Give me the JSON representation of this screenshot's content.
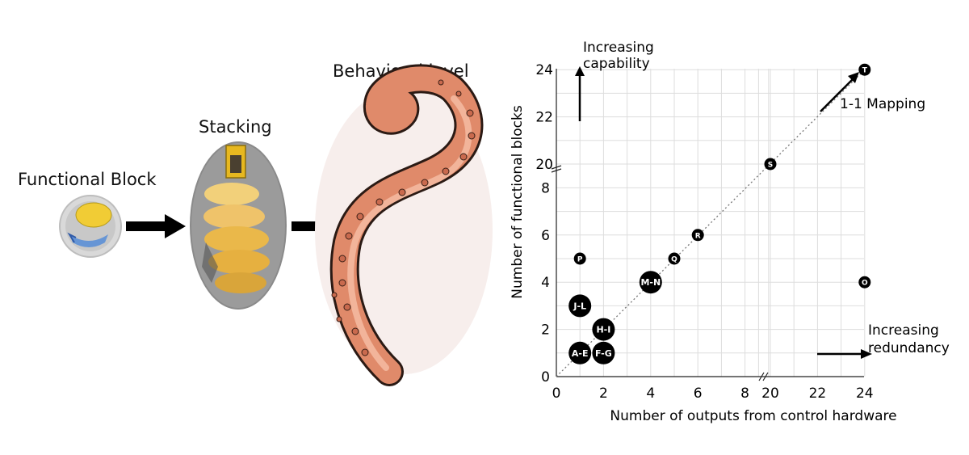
{
  "illustration": {
    "functional_block_label": "Functional Block",
    "stacking_label": "Stacking",
    "behavioral_label": "Behavioral level"
  },
  "chart_data": {
    "type": "scatter",
    "xlabel": "Number of outputs from control hardware",
    "ylabel": "Number of functional blocks",
    "x_ticks_lower": [
      "0",
      "2",
      "4",
      "6",
      "8"
    ],
    "x_ticks_upper": [
      "20",
      "22",
      "24"
    ],
    "y_ticks_lower": [
      "0",
      "2",
      "4",
      "6",
      "8"
    ],
    "y_ticks_upper": [
      "20",
      "22",
      "24"
    ],
    "axis_break": {
      "lower_range": [
        0,
        9
      ],
      "upper_range": [
        19,
        24
      ]
    },
    "diagonal_label": "1-1 Mapping",
    "annotations": {
      "capability": "Increasing\ncapability",
      "redundancy": "Increasing\nredundancy"
    },
    "points": [
      {
        "label": "A-E",
        "x": 1,
        "y": 1,
        "size": "large"
      },
      {
        "label": "F-G",
        "x": 2,
        "y": 1,
        "size": "large"
      },
      {
        "label": "H-I",
        "x": 2,
        "y": 2,
        "size": "large"
      },
      {
        "label": "J-L",
        "x": 1,
        "y": 3,
        "size": "large"
      },
      {
        "label": "M-N",
        "x": 4,
        "y": 4,
        "size": "large"
      },
      {
        "label": "P",
        "x": 1,
        "y": 5,
        "size": "small"
      },
      {
        "label": "Q",
        "x": 5,
        "y": 5,
        "size": "small"
      },
      {
        "label": "R",
        "x": 6,
        "y": 6,
        "size": "small"
      },
      {
        "label": "S",
        "x": 20,
        "y": 20,
        "size": "small"
      },
      {
        "label": "T",
        "x": 24,
        "y": 24,
        "size": "small"
      },
      {
        "label": "O",
        "x": 24,
        "y": 4,
        "size": "small"
      }
    ]
  }
}
